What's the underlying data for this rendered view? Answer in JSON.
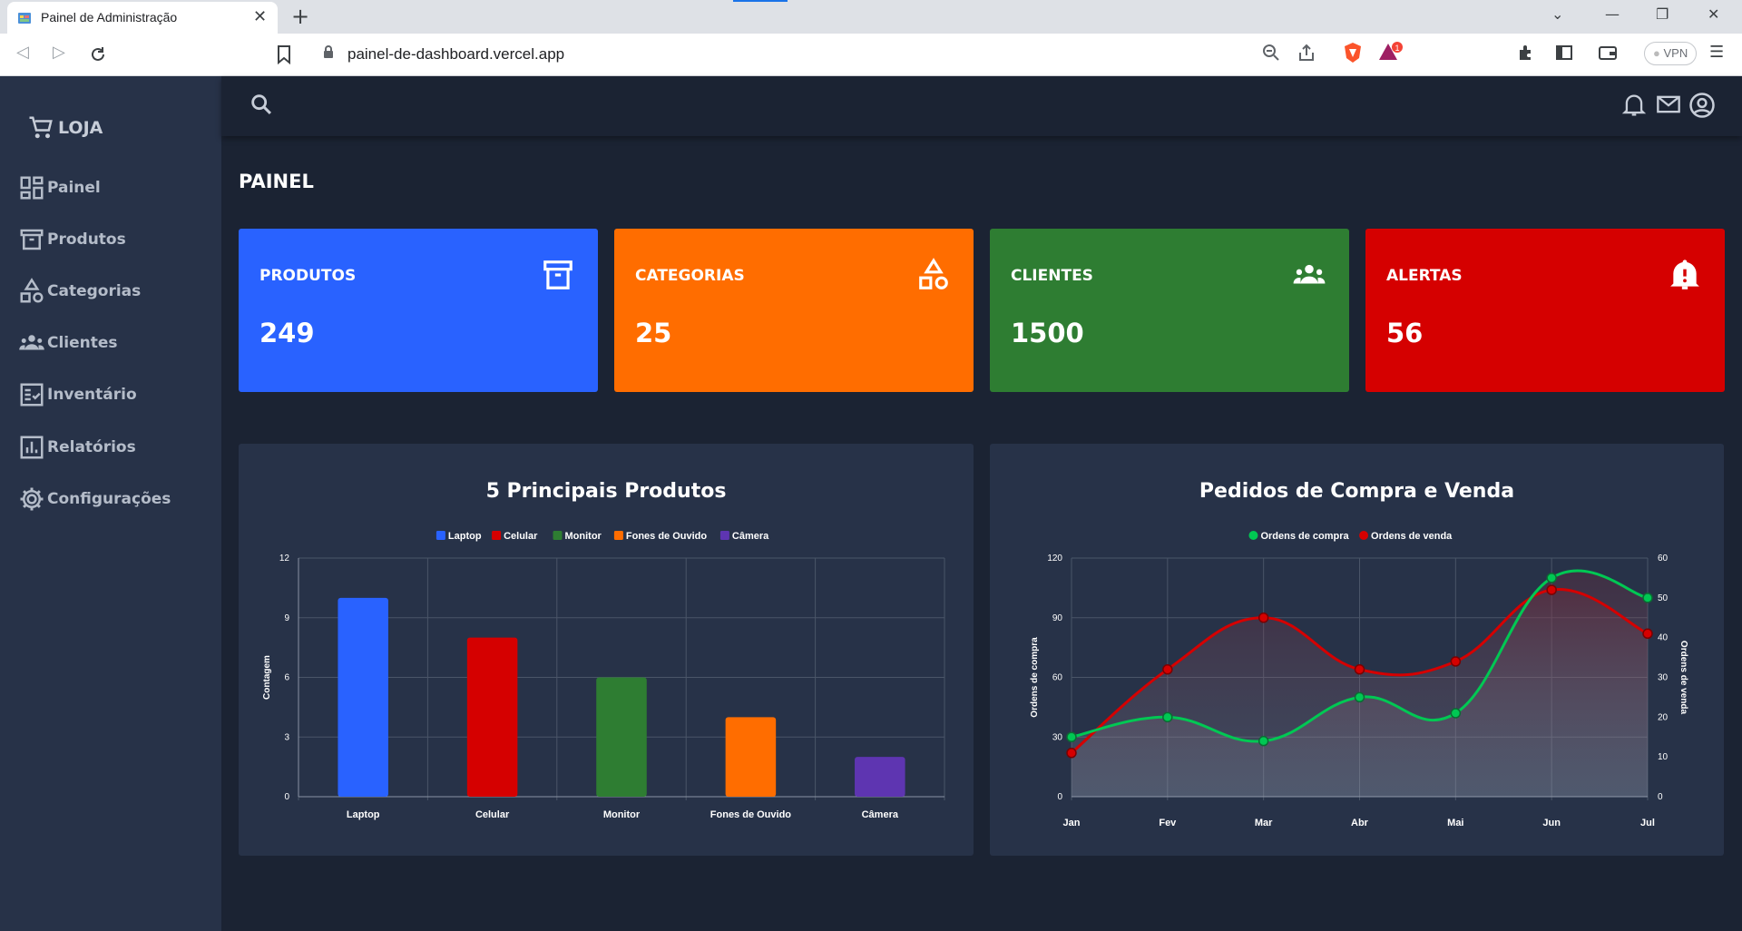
{
  "browser": {
    "tab_title": "Painel de Administração",
    "url": "painel-de-dashboard.vercel.app",
    "vpn_label": "VPN",
    "notification_count": "1"
  },
  "sidebar": {
    "brand": "LOJA",
    "items": [
      {
        "label": "Painel",
        "icon": "dashboard-icon"
      },
      {
        "label": "Produtos",
        "icon": "archive-icon"
      },
      {
        "label": "Categorias",
        "icon": "shapes-icon"
      },
      {
        "label": "Clientes",
        "icon": "people-icon"
      },
      {
        "label": "Inventário",
        "icon": "checklist-icon"
      },
      {
        "label": "Relatórios",
        "icon": "bar-chart-icon"
      },
      {
        "label": "Configurações",
        "icon": "gear-icon"
      }
    ]
  },
  "main": {
    "title": "PAINEL",
    "cards": [
      {
        "label": "PRODUTOS",
        "value": "249",
        "color": "#2962ff",
        "icon": "archive-icon"
      },
      {
        "label": "CATEGORIAS",
        "value": "25",
        "color": "#ff6d00",
        "icon": "shapes-icon"
      },
      {
        "label": "CLIENTES",
        "value": "1500",
        "color": "#2e7d32",
        "icon": "people-icon"
      },
      {
        "label": "ALERTAS",
        "value": "56",
        "color": "#d50000",
        "icon": "bell-alert-icon"
      }
    ]
  },
  "chart_data": [
    {
      "type": "bar",
      "title": "5 Principais Produtos",
      "categories": [
        "Laptop",
        "Celular",
        "Monitor",
        "Fones de Ouvido",
        "Câmera"
      ],
      "values": [
        10,
        8,
        6,
        4,
        2
      ],
      "colors": [
        "#2962ff",
        "#d50000",
        "#2e7d32",
        "#ff6d00",
        "#5e35b1"
      ],
      "legend": [
        "Laptop",
        "Celular",
        "Monitor",
        "Fones de Ouvido",
        "Câmera"
      ],
      "legend_position": "top",
      "ylabel": "Contagem",
      "xlabel": "",
      "ylim": [
        0,
        12
      ],
      "yticks": [
        0,
        3,
        6,
        9,
        12
      ],
      "grid": true
    },
    {
      "type": "line",
      "title": "Pedidos de Compra e Venda",
      "x": [
        "Jan",
        "Fev",
        "Mar",
        "Abr",
        "Mai",
        "Jun",
        "Jul"
      ],
      "series": [
        {
          "name": "Ordens de compra",
          "axis": "left",
          "color": "#00c853",
          "values": [
            30,
            40,
            28,
            50,
            42,
            110,
            100
          ]
        },
        {
          "name": "Ordens de venda",
          "axis": "right",
          "color": "#d50000",
          "values": [
            11,
            32,
            45,
            32,
            34,
            52,
            41
          ]
        }
      ],
      "ylabel_left": "Ordens de compra",
      "ylabel_right": "Ordens de venda",
      "ylim_left": [
        0,
        120
      ],
      "yticks_left": [
        0,
        30,
        60,
        90,
        120
      ],
      "ylim_right": [
        0,
        60
      ],
      "yticks_right": [
        0,
        10,
        20,
        30,
        40,
        50,
        60
      ],
      "legend_position": "top",
      "grid": true,
      "smooth": true
    }
  ]
}
